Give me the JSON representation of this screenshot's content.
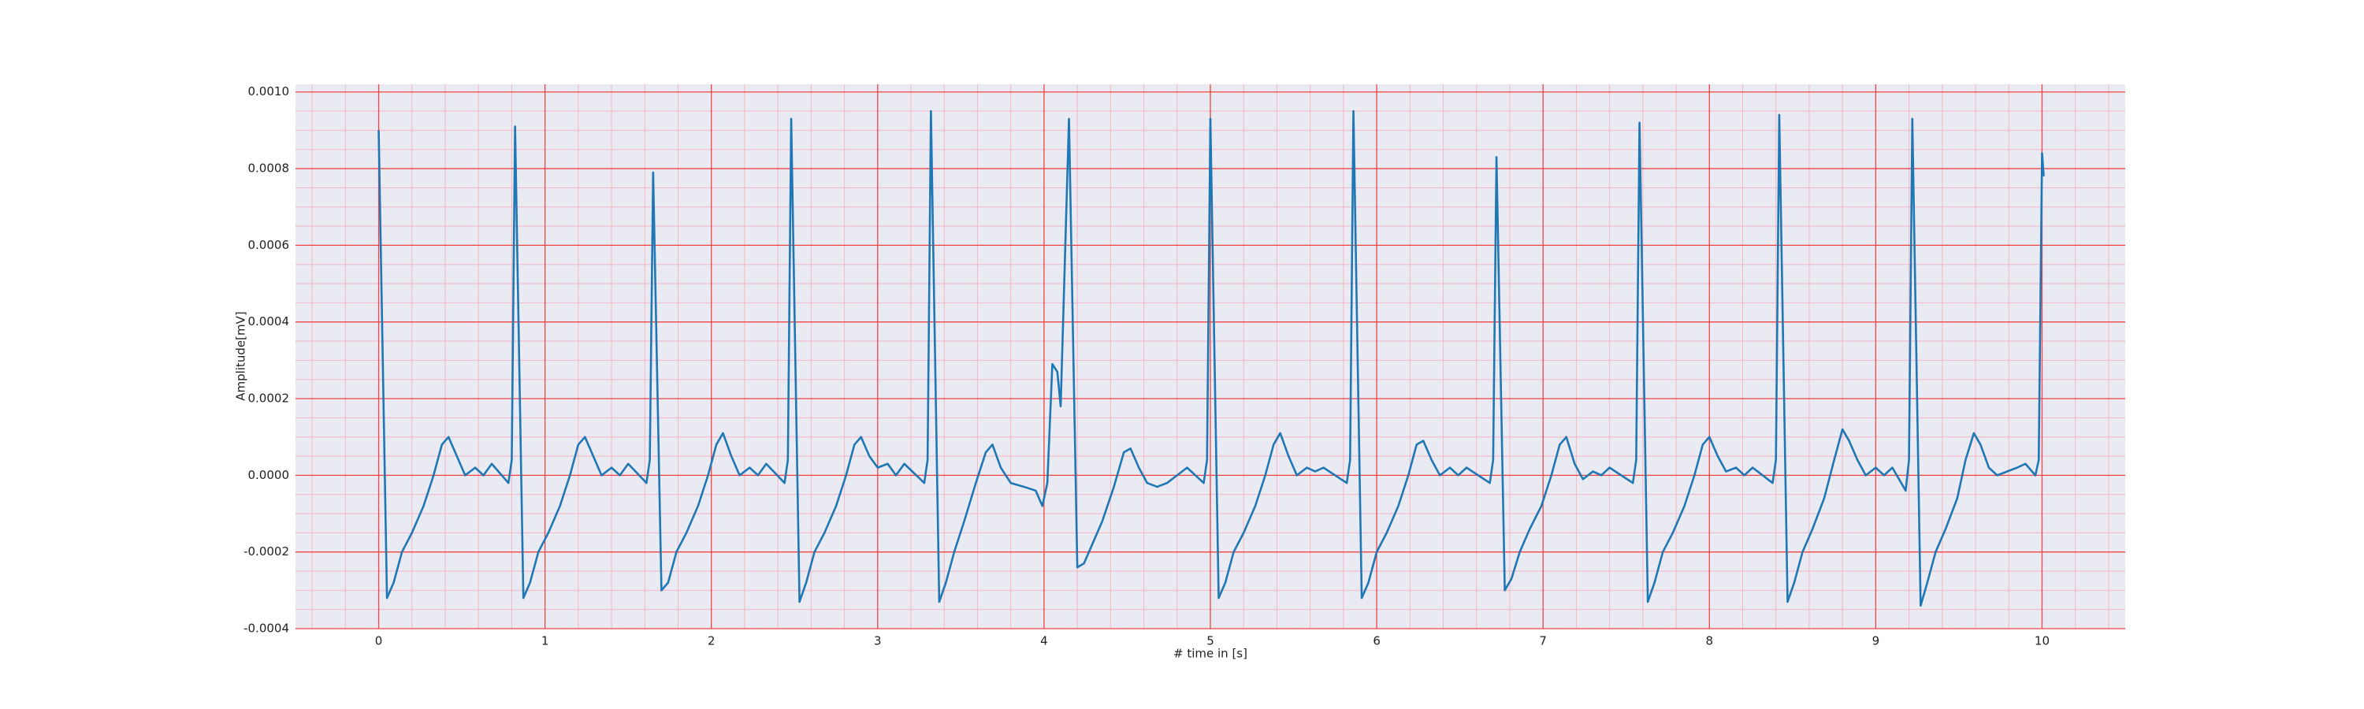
{
  "chart_data": {
    "type": "line",
    "xlabel": "# time in [s]",
    "ylabel": "Amplitude[mV]",
    "color": "#1f77b4",
    "grid": true,
    "minor_grid": true,
    "xlim": [
      -0.5,
      10.5
    ],
    "ylim": [
      -0.0004,
      0.00102
    ],
    "xticks": [
      0,
      1,
      2,
      3,
      4,
      5,
      6,
      7,
      8,
      9,
      10
    ],
    "yticks": [
      {
        "value": -0.0004,
        "label": "-0.0004"
      },
      {
        "value": -0.0002,
        "label": "-0.0002"
      },
      {
        "value": 0,
        "label": "0.0000"
      },
      {
        "value": 0.0002,
        "label": "0.0002"
      },
      {
        "value": 0.0004,
        "label": "0.0004"
      },
      {
        "value": 0.0006,
        "label": "0.0006"
      },
      {
        "value": 0.0008,
        "label": "0.0008"
      },
      {
        "value": 0.001,
        "label": "0.0010"
      }
    ],
    "xminorticks": [
      -0.4,
      -0.2,
      0.2,
      0.4,
      0.6,
      0.8,
      1.2,
      1.4,
      1.6,
      1.8,
      2.2,
      2.4,
      2.6,
      2.8,
      3.2,
      3.4,
      3.6,
      3.8,
      4.2,
      4.4,
      4.6,
      4.8,
      5.2,
      5.4,
      5.6,
      5.8,
      6.2,
      6.4,
      6.6,
      6.8,
      7.2,
      7.4,
      7.6,
      7.8,
      8.2,
      8.4,
      8.6,
      8.8,
      9.2,
      9.4,
      9.6,
      9.8,
      10.2,
      10.4
    ],
    "yminorticks": [
      -0.00035,
      -0.0003,
      -0.00025,
      -0.00015,
      -0.0001,
      -5e-05,
      5e-05,
      0.0001,
      0.00015,
      0.00025,
      0.0003,
      0.00035,
      0.00045,
      0.0005,
      0.00055,
      0.00065,
      0.0007,
      0.00075,
      0.00085,
      0.0009,
      0.00095
    ],
    "x": [
      0,
      0.05,
      0.09,
      0.14,
      0.2,
      0.27,
      0.33,
      0.38,
      0.42,
      0.47,
      0.52,
      0.58,
      0.63,
      0.68,
      0.78,
      0.8,
      0.82,
      0.87,
      0.91,
      0.96,
      1.02,
      1.09,
      1.15,
      1.2,
      1.24,
      1.29,
      1.34,
      1.4,
      1.45,
      1.5,
      1.61,
      1.63,
      1.65,
      1.7,
      1.74,
      1.79,
      1.85,
      1.92,
      1.98,
      2.03,
      2.07,
      2.12,
      2.17,
      2.23,
      2.28,
      2.33,
      2.44,
      2.46,
      2.48,
      2.53,
      2.57,
      2.62,
      2.68,
      2.75,
      2.81,
      2.86,
      2.9,
      2.95,
      3.0,
      3.06,
      3.11,
      3.16,
      3.28,
      3.3,
      3.32,
      3.37,
      3.41,
      3.46,
      3.52,
      3.59,
      3.65,
      3.69,
      3.74,
      3.8,
      3.88,
      3.95,
      3.99,
      4.02,
      4.05,
      4.08,
      4.1,
      4.15,
      4.2,
      4.24,
      4.29,
      4.35,
      4.42,
      4.48,
      4.52,
      4.57,
      4.62,
      4.68,
      4.74,
      4.8,
      4.86,
      4.96,
      4.98,
      5.0,
      5.05,
      5.09,
      5.14,
      5.2,
      5.27,
      5.33,
      5.38,
      5.42,
      5.47,
      5.52,
      5.58,
      5.63,
      5.68,
      5.82,
      5.84,
      5.86,
      5.91,
      5.95,
      6.0,
      6.06,
      6.13,
      6.19,
      6.24,
      6.28,
      6.33,
      6.38,
      6.44,
      6.49,
      6.54,
      6.68,
      6.7,
      6.72,
      6.77,
      6.81,
      6.86,
      6.92,
      6.99,
      7.05,
      7.1,
      7.14,
      7.19,
      7.24,
      7.3,
      7.35,
      7.4,
      7.54,
      7.56,
      7.58,
      7.63,
      7.67,
      7.72,
      7.78,
      7.85,
      7.91,
      7.96,
      8.0,
      8.05,
      8.1,
      8.16,
      8.21,
      8.26,
      8.38,
      8.4,
      8.42,
      8.47,
      8.51,
      8.56,
      8.62,
      8.69,
      8.75,
      8.8,
      8.84,
      8.89,
      8.94,
      9.0,
      9.05,
      9.1,
      9.18,
      9.2,
      9.22,
      9.27,
      9.31,
      9.36,
      9.42,
      9.49,
      9.54,
      9.59,
      9.63,
      9.68,
      9.73,
      9.79,
      9.85,
      9.9,
      9.96,
      9.98,
      10.0,
      10.01
    ],
    "values": [
      0.0009,
      -0.00032,
      -0.00028,
      -0.0002,
      -0.00015,
      -8e-05,
      0,
      8e-05,
      0.0001,
      5e-05,
      0,
      2e-05,
      0,
      3e-05,
      -2e-05,
      4e-05,
      0.00091,
      -0.00032,
      -0.00028,
      -0.0002,
      -0.00015,
      -8e-05,
      0,
      8e-05,
      0.0001,
      5e-05,
      0,
      2e-05,
      0,
      3e-05,
      -2e-05,
      4e-05,
      0.00079,
      -0.0003,
      -0.00028,
      -0.0002,
      -0.00015,
      -8e-05,
      0,
      8e-05,
      0.00011,
      5e-05,
      0,
      2e-05,
      0,
      3e-05,
      -2e-05,
      4e-05,
      0.00093,
      -0.00033,
      -0.00028,
      -0.0002,
      -0.00015,
      -8e-05,
      0,
      8e-05,
      0.0001,
      5e-05,
      2e-05,
      3e-05,
      0,
      3e-05,
      -2e-05,
      4e-05,
      0.00095,
      -0.00033,
      -0.00028,
      -0.0002,
      -0.00012,
      -2e-05,
      6e-05,
      8e-05,
      2e-05,
      -2e-05,
      -3e-05,
      -4e-05,
      -8e-05,
      -2e-05,
      0.00029,
      0.00027,
      0.00018,
      0.00093,
      -0.00024,
      -0.00023,
      -0.00018,
      -0.00012,
      -3e-05,
      6e-05,
      7e-05,
      2e-05,
      -2e-05,
      -3e-05,
      -2e-05,
      0,
      2e-05,
      -2e-05,
      4e-05,
      0.00093,
      -0.00032,
      -0.00028,
      -0.0002,
      -0.00015,
      -8e-05,
      0,
      8e-05,
      0.00011,
      5e-05,
      0,
      2e-05,
      1e-05,
      2e-05,
      -2e-05,
      4e-05,
      0.00095,
      -0.00032,
      -0.00028,
      -0.0002,
      -0.00015,
      -8e-05,
      0,
      8e-05,
      9e-05,
      4e-05,
      0,
      2e-05,
      0,
      2e-05,
      -2e-05,
      4e-05,
      0.00083,
      -0.0003,
      -0.00027,
      -0.0002,
      -0.00014,
      -8e-05,
      0,
      8e-05,
      0.0001,
      3e-05,
      -1e-05,
      1e-05,
      0,
      2e-05,
      -2e-05,
      4e-05,
      0.00092,
      -0.00033,
      -0.00028,
      -0.0002,
      -0.00015,
      -8e-05,
      0,
      8e-05,
      0.0001,
      5e-05,
      1e-05,
      2e-05,
      0,
      2e-05,
      -2e-05,
      4e-05,
      0.00094,
      -0.00033,
      -0.00028,
      -0.0002,
      -0.00014,
      -6e-05,
      4e-05,
      0.00012,
      9e-05,
      4e-05,
      0,
      2e-05,
      0,
      2e-05,
      -4e-05,
      4e-05,
      0.00093,
      -0.00034,
      -0.00028,
      -0.0002,
      -0.00014,
      -6e-05,
      4e-05,
      0.00011,
      8e-05,
      2e-05,
      0,
      1e-05,
      2e-05,
      3e-05,
      0,
      4e-05,
      0.00084,
      0.00078
    ]
  }
}
